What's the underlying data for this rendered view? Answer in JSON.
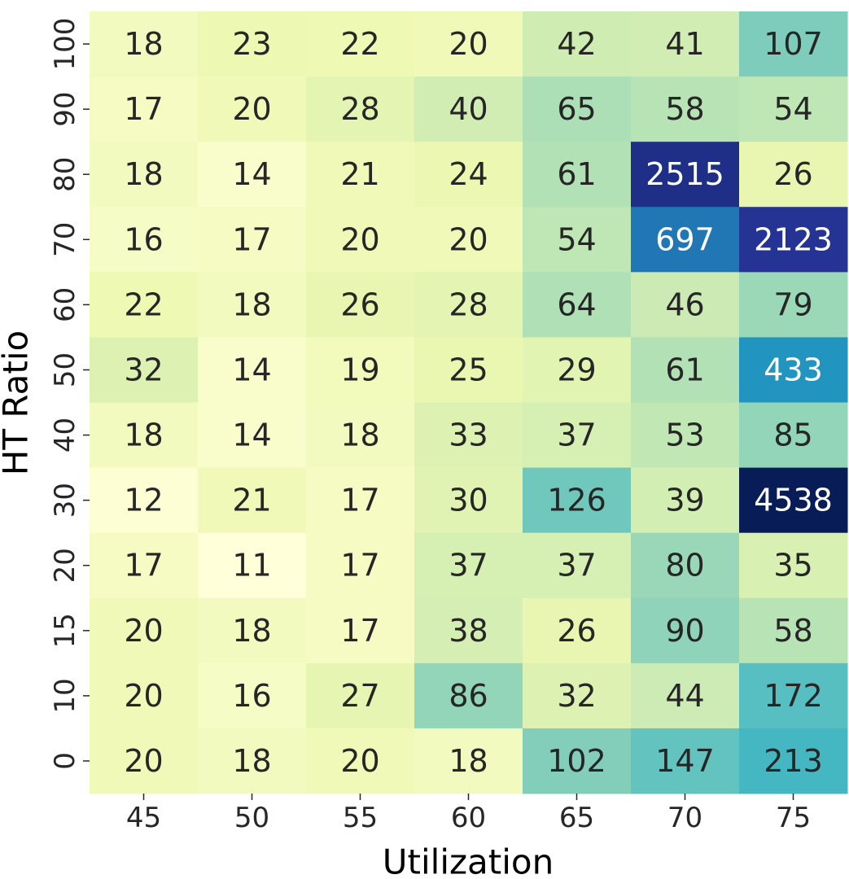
{
  "chart_data": {
    "type": "heatmap",
    "xlabel": "Utilization",
    "ylabel": "HT Ratio",
    "x_categories": [
      "45",
      "50",
      "55",
      "60",
      "65",
      "70",
      "75"
    ],
    "y_categories": [
      "100",
      "90",
      "80",
      "70",
      "60",
      "50",
      "40",
      "30",
      "20",
      "15",
      "10",
      "0"
    ],
    "values": [
      [
        18,
        23,
        22,
        20,
        42,
        41,
        107
      ],
      [
        17,
        20,
        28,
        40,
        65,
        58,
        54
      ],
      [
        18,
        14,
        21,
        24,
        61,
        2515,
        26
      ],
      [
        16,
        17,
        20,
        20,
        54,
        697,
        2123
      ],
      [
        22,
        18,
        26,
        28,
        64,
        46,
        79
      ],
      [
        32,
        14,
        19,
        25,
        29,
        61,
        433
      ],
      [
        18,
        14,
        18,
        33,
        37,
        53,
        85
      ],
      [
        12,
        21,
        17,
        30,
        126,
        39,
        4538
      ],
      [
        17,
        11,
        17,
        37,
        37,
        80,
        35
      ],
      [
        20,
        18,
        17,
        38,
        26,
        90,
        58
      ],
      [
        20,
        16,
        27,
        86,
        32,
        44,
        172
      ],
      [
        20,
        18,
        20,
        18,
        102,
        147,
        213
      ]
    ],
    "colormap": "YlGnBu",
    "color_scale": "log",
    "colorbar": false,
    "grid": false
  }
}
